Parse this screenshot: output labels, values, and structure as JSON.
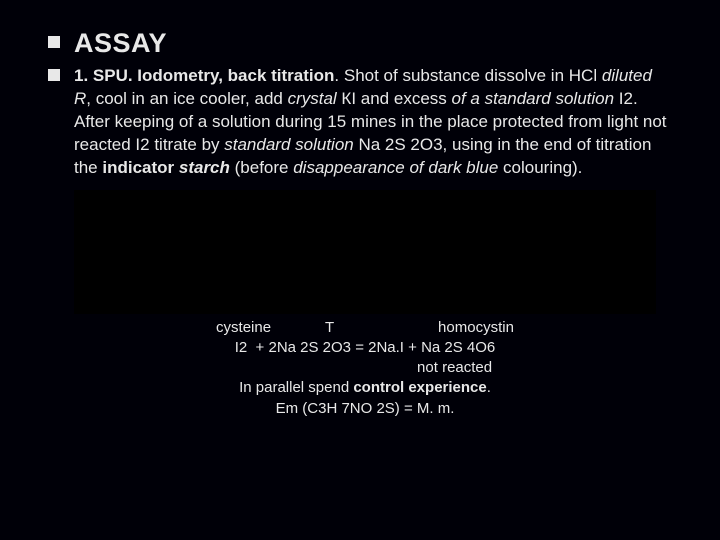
{
  "colors": {
    "background": "#000008",
    "text": "#e8e8e8",
    "bullet": "#e8e8e8",
    "image_placeholder": "#000000"
  },
  "typography": {
    "font_family": "Verdana, Geneva, sans-serif",
    "heading_fontsize": 27,
    "body_fontsize": 17,
    "caption_fontsize": 15
  },
  "heading": "ASSAY",
  "body_bold_lead": "1. SPU. Iodometry, back titration",
  "body_after_lead": ". Shot of  substance dissolve in HCl ",
  "body_italic_1": "diluted R",
  "body_mid_1": ", cool in an ice cooler, add ",
  "body_italic_2": "crystal",
  "body_mid_2": " КI and excess ",
  "body_italic_3": "of a standard solution",
  "body_mid_3": "  I2. After keeping of a solution during 15 mines in the place protected from light not reacted I2 titrate by ",
  "body_italic_4": "standard solution",
  "body_mid_4": " Na 2S 2O3, using in the end of titration the ",
  "body_bold_tail": "indicator ",
  "body_boldital_tail": "starch",
  "body_tail_1": " (before ",
  "body_italic_5": "disappearance of dark blue",
  "body_tail_2": " colouring).",
  "caption_line_1": "cysteine             T                         homocystin",
  "caption_line_2": "I2  + 2Na 2S 2O3 = 2Na.I + Na 2S 4O6",
  "caption_line_3": "                                           not reacted",
  "caption_line_4_a": "In parallel spend ",
  "caption_line_4_b": "control experience",
  "caption_line_4_c": ".",
  "caption_line_5": "Em (С3Н 7NO 2S) = M. m."
}
